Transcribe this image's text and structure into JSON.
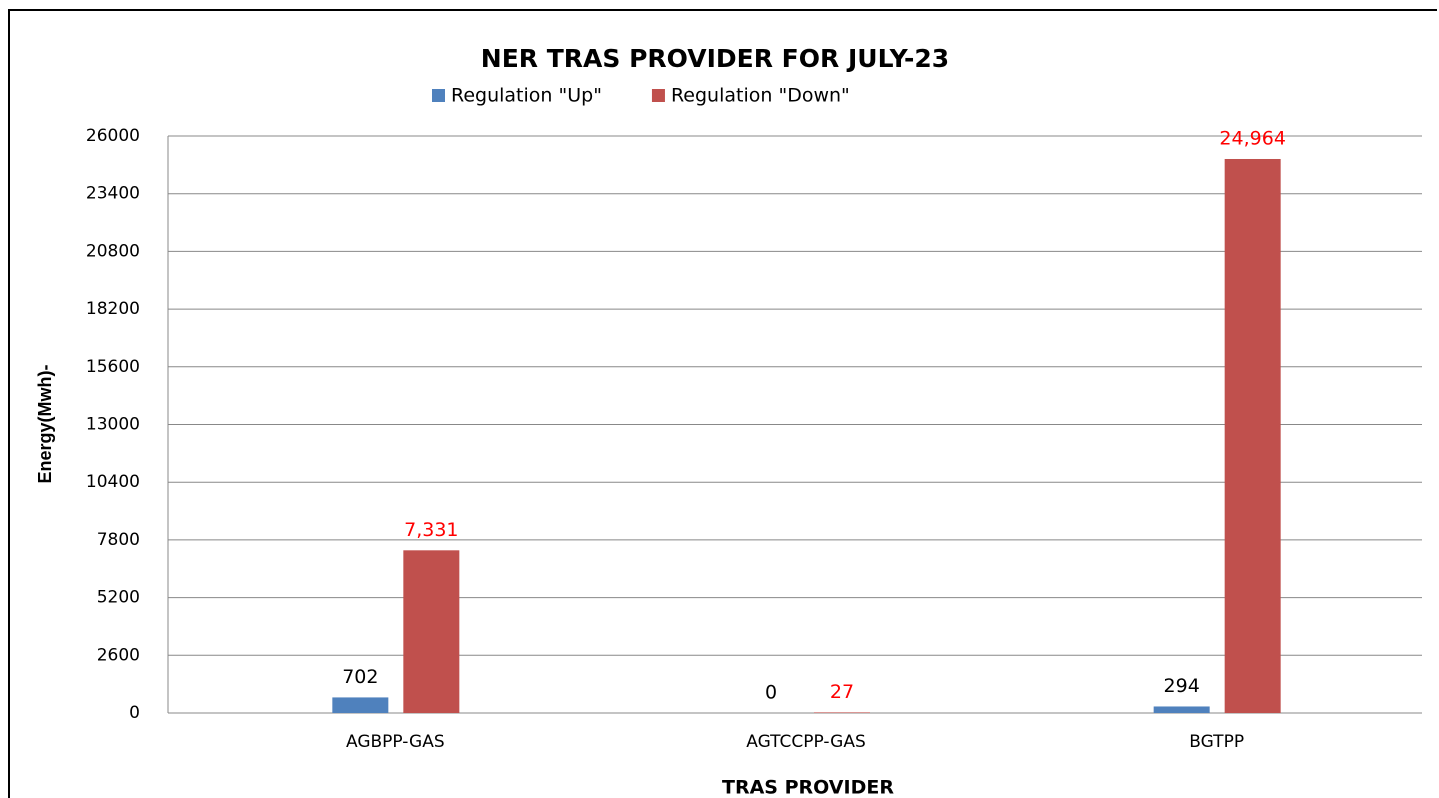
{
  "chart_data": {
    "type": "bar",
    "title": "NER TRAS PROVIDER FOR JULY-23",
    "x_label": "TRAS PROVIDER",
    "y_label": "Energy(Mwh)-",
    "categories": [
      "AGBPP-GAS",
      "AGTCCPP-GAS",
      "BGTPP"
    ],
    "series": [
      {
        "name": "Regulation \"Up\"",
        "color": "#4f81bd",
        "values": [
          702,
          0,
          294
        ]
      },
      {
        "name": "Regulation \"Down\"",
        "color": "#c0504d",
        "values": [
          7331,
          27,
          24964
        ],
        "value_labels": [
          "7,331",
          "27",
          "24,964"
        ]
      }
    ],
    "ylim": [
      0,
      26000
    ],
    "yticks": [
      0,
      2600,
      5200,
      7800,
      10400,
      13000,
      15600,
      18200,
      20800,
      23400,
      26000
    ],
    "grid": true,
    "legend": "top"
  }
}
